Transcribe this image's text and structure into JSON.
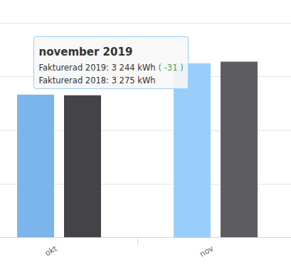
{
  "chart_data": {
    "type": "bar",
    "categories": [
      "okt",
      "nov"
    ],
    "series": [
      {
        "colors": [
          "#7cb5ec",
          "#99cefa"
        ],
        "values": [
          2660,
          3244
        ]
      },
      {
        "colors": [
          "#434348",
          "#5c5c61"
        ],
        "values": [
          2648,
          3275
        ]
      }
    ],
    "ylim": [
      0,
      4000
    ],
    "yticks": [
      0,
      1000,
      2000,
      3000,
      4000
    ],
    "grid": true,
    "tick_labels": "x",
    "annotations": [
      {
        "title": "november 2019",
        "rows": [
          {
            "label": "Fakturerad 2019: 3 244 kWh",
            "delta": "( -31 )"
          },
          {
            "label": "Fakturerad 2018: 3 275 kWh"
          }
        ]
      }
    ]
  }
}
